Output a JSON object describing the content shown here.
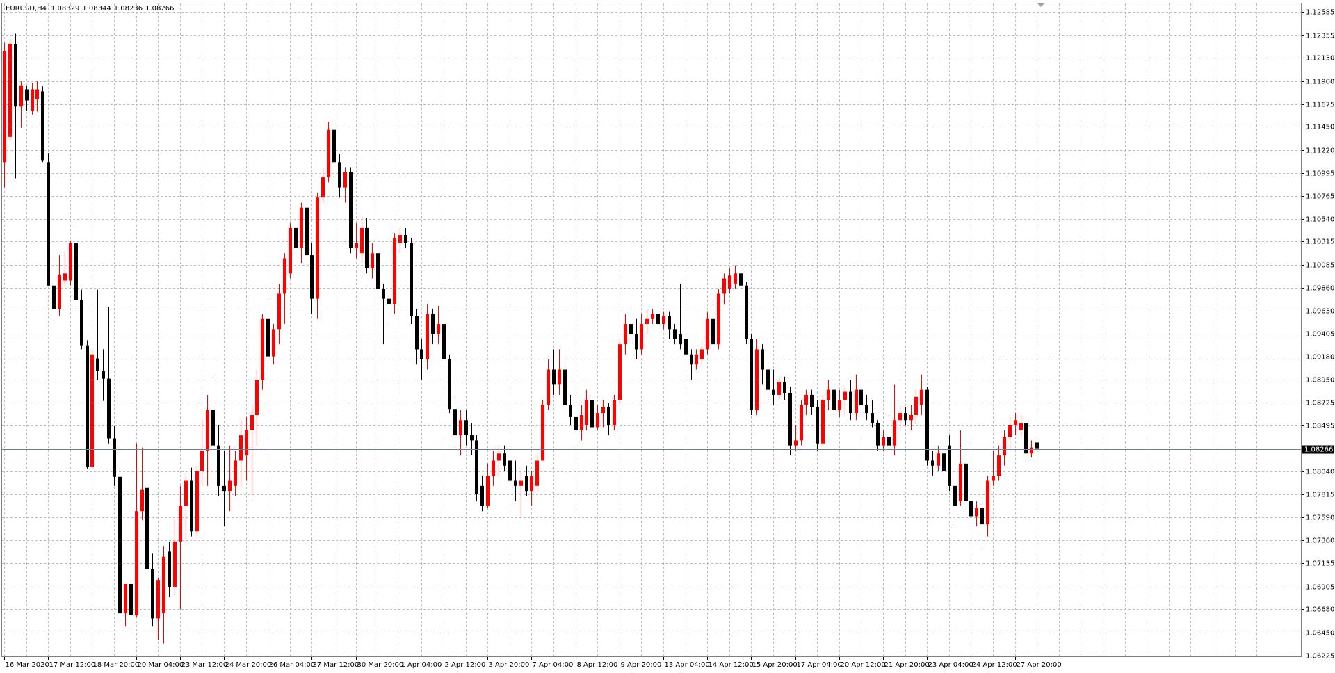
{
  "chart_data": {
    "type": "candlestick",
    "title": "EURUSD,H4",
    "up_color": "#ff0000",
    "down_color": "#000000",
    "grid": true,
    "ylim": [
      1.06208,
      1.12669
    ],
    "yticks": [
      1.12585,
      1.12355,
      {
        "value": 1.1213,
        "label": "1.12130"
      },
      {
        "value": 1.119,
        "label": "1.11900"
      },
      1.11675,
      {
        "value": 1.1145,
        "label": "1.11450"
      },
      {
        "value": 1.1122,
        "label": "1.11220"
      },
      1.10995,
      1.10765,
      {
        "value": 1.1054,
        "label": "1.10540"
      },
      1.10315,
      1.10085,
      {
        "value": 1.0986,
        "label": "1.09860"
      },
      {
        "value": 1.0963,
        "label": "1.09630"
      },
      1.09405,
      {
        "value": 1.0918,
        "label": "1.09180"
      },
      {
        "value": 1.0895,
        "label": "1.08950"
      },
      1.08725,
      1.08495,
      {
        "value": 1.0804,
        "label": "1.08040"
      },
      1.07815,
      {
        "value": 1.0759,
        "label": "1.07590"
      },
      {
        "value": 1.0736,
        "label": "1.07360"
      },
      1.07135,
      1.06905,
      {
        "value": 1.0668,
        "label": "1.06680"
      },
      {
        "value": 1.0645,
        "label": "1.06450"
      },
      1.06225
    ],
    "categories": [
      "16 Mar 2020",
      null,
      null,
      null,
      null,
      null,
      null,
      null,
      "17 Mar 12:00",
      null,
      null,
      null,
      null,
      null,
      null,
      null,
      "18 Mar 20:00",
      null,
      null,
      null,
      null,
      null,
      null,
      null,
      "20 Mar 04:00",
      null,
      null,
      null,
      null,
      null,
      null,
      null,
      "23 Mar 12:00",
      null,
      null,
      null,
      null,
      null,
      null,
      null,
      "24 Mar 20:00",
      null,
      null,
      null,
      null,
      null,
      null,
      null,
      "26 Mar 04:00",
      null,
      null,
      null,
      null,
      null,
      null,
      null,
      "27 Mar 12:00",
      null,
      null,
      null,
      null,
      null,
      null,
      null,
      "30 Mar 20:00",
      null,
      null,
      null,
      null,
      null,
      null,
      null,
      "1 Apr 04:00",
      null,
      null,
      null,
      null,
      null,
      null,
      null,
      "2 Apr 12:00",
      null,
      null,
      null,
      null,
      null,
      null,
      null,
      "3 Apr 20:00",
      null,
      null,
      null,
      null,
      null,
      null,
      null,
      "7 Apr 04:00",
      null,
      null,
      null,
      null,
      null,
      null,
      null,
      "8 Apr 12:00",
      null,
      null,
      null,
      null,
      null,
      null,
      null,
      "9 Apr 20:00",
      null,
      null,
      null,
      null,
      null,
      null,
      null,
      "13 Apr 04:00",
      null,
      null,
      null,
      null,
      null,
      null,
      null,
      "14 Apr 12:00",
      null,
      null,
      null,
      null,
      null,
      null,
      null,
      "15 Apr 20:00",
      null,
      null,
      null,
      null,
      null,
      null,
      null,
      "17 Apr 04:00",
      null,
      null,
      null,
      null,
      null,
      null,
      null,
      "20 Apr 12:00",
      null,
      null,
      null,
      null,
      null,
      null,
      null,
      "21 Apr 20:00",
      null,
      null,
      null,
      null,
      null,
      null,
      null,
      "23 Apr 04:00",
      null,
      null,
      null,
      null,
      null,
      null,
      null,
      "24 Apr 12:00",
      null,
      null,
      null,
      null,
      null,
      null,
      null,
      "27 Apr 20:00",
      null,
      null,
      null,
      null
    ],
    "open": [
      1.111,
      1.1135,
      1.1227,
      1.1165,
      1.1182,
      1.1161,
      1.1172,
      1.118,
      1.111,
      1.0988,
      1.0965,
      1.0993,
      1.0993,
      1.103,
      1.0974,
      1.0929,
      1.0809,
      1.0916,
      1.0904,
      1.0896,
      1.0837,
      1.0799,
      1.0664,
      1.0693,
      1.0662,
      1.0765,
      1.0788,
      1.0708,
      1.0659,
      1.0664,
      1.0725,
      1.069,
      1.0735,
      1.077,
      1.0795,
      1.0745,
      1.0805,
      1.0825,
      1.0865,
      1.083,
      1.079,
      1.0785,
      1.079,
      1.0815,
      1.082,
      1.0845,
      1.086,
      1.0895,
      1.0955,
      1.0918,
      1.0945,
      1.098,
      1.1,
      1.1045,
      1.1025,
      1.1065,
      1.1018,
      1.0975,
      1.1075,
      1.1095,
      1.1142,
      1.111,
      1.1085,
      1.11,
      1.1025,
      1.102,
      1.1045,
      1.1005,
      1.102,
      1.0985,
      1.0975,
      1.097,
      1.103,
      1.1038,
      1.103,
      1.0958,
      1.0925,
      1.0915,
      1.096,
      1.094,
      1.095,
      1.0915,
      1.0866,
      1.084,
      1.0855,
      1.084,
      1.0835,
      1.079,
      1.077,
      1.08,
      1.0815,
      1.0822,
      1.0815,
      1.0795,
      1.079,
      1.08,
      1.0785,
      1.079,
      1.0815,
      1.087,
      1.0905,
      1.089,
      1.0905,
      1.087,
      1.0858,
      1.0845,
      1.085,
      1.0875,
      1.0848,
      1.0862,
      1.0868,
      1.085,
      1.0875,
      1.093,
      1.095,
      1.094,
      1.0925,
      1.095,
      1.0955,
      1.096,
      1.095,
      1.0958,
      1.0945,
      1.094,
      1.0935,
      1.092,
      1.091,
      1.0915,
      1.0925,
      1.0955,
      1.093,
      1.098,
      1.0985,
      1.099,
      1.1,
      1.0988,
      1.0935,
      1.0865,
      1.0925,
      1.0905,
      1.0885,
      1.088,
      1.0893,
      1.0882,
      1.083,
      1.0835,
      1.087,
      1.088,
      1.0868,
      1.0832,
      1.0875,
      1.0885,
      1.0865,
      1.0875,
      1.0883,
      1.0862,
      1.0885,
      1.087,
      1.0862,
      1.0852,
      1.083,
      1.0838,
      1.083,
      1.0855,
      1.0862,
      1.0855,
      1.086,
      1.087,
      1.0885,
      1.0815,
      1.081,
      1.0822,
      1.083,
      1.079,
      1.0775,
      1.0812,
      1.0775,
      1.076,
      1.0768,
      1.0752,
      1.0795,
      1.08,
      1.082,
      1.0838,
      1.085,
      1.0845,
      1.0852,
      1.0822,
      1.08329
    ],
    "high": [
      1.1228,
      1.1232,
      1.1237,
      1.119,
      1.1186,
      1.1188,
      1.119,
      1.1185,
      1.1119,
      1.1016,
      1.1018,
      1.1021,
      1.1032,
      1.1046,
      1.0984,
      1.0934,
      1.0925,
      1.0984,
      1.0925,
      1.0967,
      1.0849,
      1.0832,
      1.0693,
      1.0697,
      1.0832,
      1.0828,
      1.079,
      1.0723,
      1.0699,
      1.073,
      1.0735,
      1.0758,
      1.079,
      1.08,
      1.0808,
      1.081,
      1.0855,
      1.088,
      1.09,
      1.085,
      1.0825,
      1.083,
      1.0825,
      1.0855,
      1.0858,
      1.087,
      1.0905,
      1.096,
      1.0975,
      1.095,
      1.099,
      1.102,
      1.105,
      1.1055,
      1.107,
      1.108,
      1.103,
      1.108,
      1.1105,
      1.115,
      1.1148,
      1.1118,
      1.1105,
      1.1105,
      1.105,
      1.1055,
      1.1055,
      1.103,
      1.103,
      1.099,
      1.099,
      1.104,
      1.1045,
      1.1045,
      1.1035,
      1.0965,
      1.0935,
      1.097,
      1.0965,
      1.0968,
      1.0965,
      1.092,
      1.0875,
      1.0865,
      1.0865,
      1.0852,
      1.084,
      1.08,
      1.0812,
      1.0825,
      1.083,
      1.083,
      1.0845,
      1.0815,
      1.0805,
      1.081,
      1.0805,
      1.082,
      1.0875,
      1.0915,
      1.0925,
      1.0925,
      1.091,
      1.088,
      1.087,
      1.087,
      1.0885,
      1.0878,
      1.087,
      1.0875,
      1.0872,
      1.088,
      1.0935,
      1.096,
      1.0965,
      1.0955,
      1.096,
      1.0965,
      1.0965,
      1.0963,
      1.0962,
      1.0962,
      1.095,
      1.099,
      1.094,
      1.0925,
      1.0925,
      1.093,
      1.0962,
      1.097,
      1.0985,
      1.1,
      1.1005,
      1.1008,
      1.1005,
      1.0992,
      1.094,
      1.0935,
      1.093,
      1.091,
      1.0905,
      1.0898,
      1.0898,
      1.0888,
      1.085,
      1.0875,
      1.0885,
      1.0885,
      1.0875,
      1.088,
      1.0895,
      1.089,
      1.0885,
      1.0888,
      1.0895,
      1.09,
      1.089,
      1.088,
      1.0875,
      1.0855,
      1.0845,
      1.086,
      1.089,
      1.087,
      1.0868,
      1.087,
      1.0885,
      1.09,
      1.0888,
      1.0825,
      1.083,
      1.0835,
      1.084,
      1.0795,
      1.0845,
      1.0815,
      1.0785,
      1.0775,
      1.0772,
      1.08,
      1.0825,
      1.083,
      1.0845,
      1.0858,
      1.0862,
      1.086,
      1.0856,
      1.0835,
      1.08344
    ],
    "low": [
      1.1085,
      1.1131,
      1.1094,
      1.1144,
      1.1161,
      1.1157,
      1.116,
      1.111,
      1.0988,
      1.0955,
      1.0958,
      1.0988,
      1.0988,
      1.0963,
      1.0925,
      1.0807,
      1.0807,
      1.0895,
      1.0874,
      1.0832,
      1.079,
      1.0655,
      1.0651,
      1.0651,
      1.066,
      1.0756,
      1.0664,
      1.0651,
      1.0638,
      1.0634,
      1.068,
      1.0682,
      1.0668,
      1.0735,
      1.074,
      1.074,
      1.079,
      1.079,
      1.0795,
      1.078,
      1.075,
      1.0765,
      1.078,
      1.079,
      1.0795,
      1.078,
      1.083,
      1.0885,
      1.091,
      1.091,
      1.093,
      1.095,
      1.0995,
      1.102,
      1.101,
      1.101,
      1.096,
      1.0955,
      1.107,
      1.109,
      1.1098,
      1.1075,
      1.107,
      1.102,
      1.1015,
      1.101,
      1.1,
      1.0995,
      1.098,
      1.093,
      1.095,
      1.096,
      1.102,
      1.1025,
      1.095,
      1.091,
      1.0895,
      1.0905,
      1.093,
      1.093,
      1.091,
      1.0862,
      1.083,
      1.082,
      1.083,
      1.082,
      1.0775,
      1.0765,
      1.0768,
      1.079,
      1.08,
      1.0805,
      1.079,
      1.0775,
      1.076,
      1.078,
      1.077,
      1.0785,
      1.0815,
      1.0865,
      1.088,
      1.088,
      1.0865,
      1.085,
      1.0825,
      1.0835,
      1.0845,
      1.0845,
      1.0845,
      1.0848,
      1.084,
      1.0845,
      1.087,
      1.092,
      1.093,
      1.0915,
      1.092,
      1.094,
      1.095,
      1.0945,
      1.0945,
      1.0935,
      1.093,
      1.0925,
      1.091,
      1.0895,
      1.0905,
      1.091,
      1.092,
      1.0925,
      1.0925,
      1.097,
      1.098,
      1.0985,
      1.0985,
      1.093,
      1.086,
      1.086,
      1.089,
      1.0875,
      1.087,
      1.0875,
      1.0875,
      1.082,
      1.0825,
      1.083,
      1.086,
      1.086,
      1.0825,
      1.083,
      1.0865,
      1.086,
      1.0858,
      1.086,
      1.0855,
      1.0855,
      1.086,
      1.0855,
      1.0848,
      1.0825,
      1.0825,
      1.0825,
      1.082,
      1.0845,
      1.085,
      1.0845,
      1.085,
      1.086,
      1.081,
      1.08,
      1.0805,
      1.08,
      1.0785,
      1.075,
      1.077,
      1.0765,
      1.0755,
      1.075,
      1.073,
      1.074,
      1.079,
      1.0795,
      1.081,
      1.0828,
      1.084,
      1.084,
      1.0818,
      1.0818,
      1.08236
    ],
    "close": [
      1.122,
      1.1227,
      1.1165,
      1.1186,
      1.1171,
      1.1182,
      1.1182,
      1.1112,
      1.0988,
      1.0965,
      1.0999,
      1.1,
      1.103,
      1.0974,
      1.0929,
      1.0809,
      1.092,
      1.0904,
      1.0896,
      1.0837,
      1.0799,
      1.0664,
      1.0693,
      1.0662,
      1.0765,
      1.0786,
      1.0708,
      1.0659,
      1.0697,
      1.072,
      1.069,
      1.0735,
      1.077,
      1.0795,
      1.0745,
      1.0805,
      1.0825,
      1.0865,
      1.083,
      1.079,
      1.0785,
      1.0795,
      1.0815,
      1.084,
      1.0845,
      1.086,
      1.0895,
      1.0955,
      1.0918,
      1.0945,
      1.098,
      1.1015,
      1.1045,
      1.1025,
      1.1065,
      1.1018,
      1.0975,
      1.1075,
      1.1095,
      1.1142,
      1.111,
      1.1085,
      1.11,
      1.1025,
      1.103,
      1.1045,
      1.1005,
      1.102,
      1.0985,
      1.0975,
      1.097,
      1.1035,
      1.1038,
      1.103,
      1.0958,
      1.0925,
      1.0915,
      1.096,
      1.094,
      1.095,
      1.0915,
      1.0866,
      1.084,
      1.0855,
      1.084,
      1.0835,
      1.0782,
      1.077,
      1.08,
      1.0815,
      1.0822,
      1.081,
      1.0795,
      1.079,
      1.0795,
      1.0785,
      1.08,
      1.0815,
      1.087,
      1.0905,
      1.089,
      1.0905,
      1.087,
      1.0858,
      1.0845,
      1.086,
      1.0875,
      1.0848,
      1.0862,
      1.0868,
      1.085,
      1.0875,
      1.093,
      1.095,
      1.094,
      1.0925,
      1.095,
      1.0955,
      1.096,
      1.095,
      1.0958,
      1.0945,
      1.0935,
      1.093,
      1.092,
      1.091,
      1.092,
      1.0925,
      1.0955,
      1.093,
      1.098,
      1.0995,
      1.0998,
      1.1,
      1.0988,
      1.0935,
      1.0865,
      1.0925,
      1.0905,
      1.0885,
      1.088,
      1.0893,
      1.0882,
      1.083,
      1.0835,
      1.087,
      1.088,
      1.0868,
      1.0832,
      1.0875,
      1.0885,
      1.0865,
      1.0875,
      1.0883,
      1.0862,
      1.0885,
      1.087,
      1.0862,
      1.0852,
      1.083,
      1.0838,
      1.083,
      1.0855,
      1.0862,
      1.0855,
      1.086,
      1.0878,
      1.0885,
      1.0815,
      1.081,
      1.0822,
      1.0805,
      1.079,
      1.077,
      1.0812,
      1.0775,
      1.076,
      1.0768,
      1.0752,
      1.0795,
      1.08,
      1.082,
      1.0838,
      1.085,
      1.0855,
      1.0852,
      1.0822,
      1.0828,
      1.08266
    ]
  }
}
